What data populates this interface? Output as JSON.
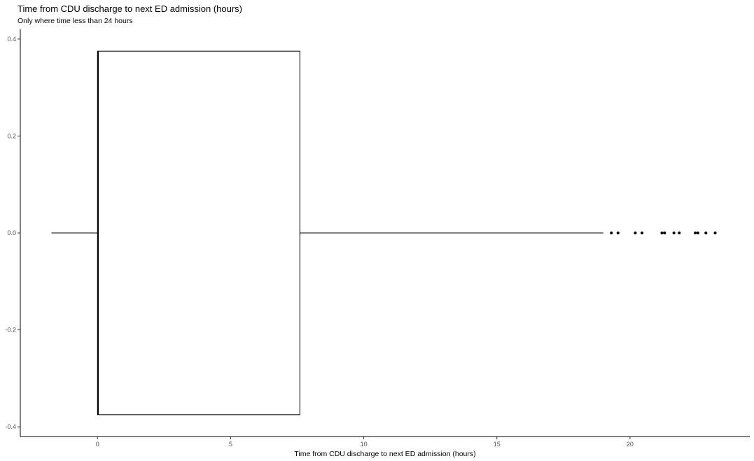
{
  "chart_data": {
    "type": "boxplot",
    "orientation": "horizontal",
    "title": "Time from CDU discharge to next ED admission (hours)",
    "subtitle": "Only where time less than 24 hours",
    "xlabel": "Time from CDU discharge to next ED admission (hours)",
    "ylabel": "",
    "xlim": [
      -2.9,
      24.5
    ],
    "ylim": [
      -0.42,
      0.42
    ],
    "x_ticks": [
      0,
      5,
      10,
      15,
      20
    ],
    "x_tick_labels": [
      "0",
      "5",
      "10",
      "15",
      "20"
    ],
    "y_ticks": [
      -0.4,
      -0.2,
      0.0,
      0.2,
      0.4
    ],
    "y_tick_labels": [
      "-0.4",
      "-0.2",
      "0.0",
      "0.2",
      "0.4"
    ],
    "box": {
      "whisker_low": -1.73,
      "q1": 0.0,
      "median": 0.02,
      "q3": 7.6,
      "whisker_high": 19.0,
      "y_center": 0.0,
      "half_width": 0.375
    },
    "outliers": [
      19.3,
      19.55,
      20.2,
      20.45,
      21.2,
      21.3,
      21.65,
      21.85,
      22.45,
      22.55,
      22.85,
      23.2
    ],
    "grid": false,
    "legend": "none"
  }
}
